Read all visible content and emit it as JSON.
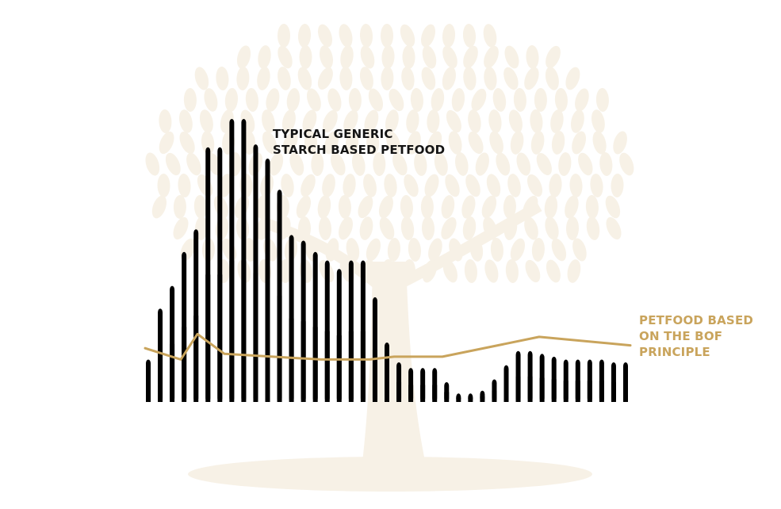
{
  "chart_data": {
    "type": "bar",
    "title": "",
    "xlabel": "",
    "ylabel": "",
    "ylim": [
      0,
      100
    ],
    "grid": false,
    "legend": "none",
    "annotations": [
      {
        "lines": [
          "TYPICAL GENERIC",
          "STARCH BASED PETFOOD"
        ],
        "color": "#141414"
      },
      {
        "lines": [
          "PETFOOD BASED",
          "ON THE BOF",
          "PRINCIPLE"
        ],
        "color": "#c9a45c"
      }
    ],
    "series": [
      {
        "type": "bar",
        "color": "#000000",
        "values": [
          15,
          33,
          41,
          53,
          61,
          90,
          90,
          100,
          100,
          91,
          86,
          75,
          59,
          57,
          53,
          50,
          47,
          50,
          50,
          37,
          21,
          14,
          12,
          12,
          12,
          7,
          3,
          3,
          4,
          8,
          13,
          18,
          18,
          17,
          16,
          15,
          15,
          15,
          15,
          14,
          14
        ]
      },
      {
        "type": "line",
        "color": "#c9a45c",
        "values": [
          19,
          15,
          24,
          17,
          16,
          15,
          15,
          16,
          16,
          23,
          20
        ]
      }
    ]
  },
  "background": {
    "watermark": "tree",
    "watermark_color": "#f7f1e6"
  }
}
